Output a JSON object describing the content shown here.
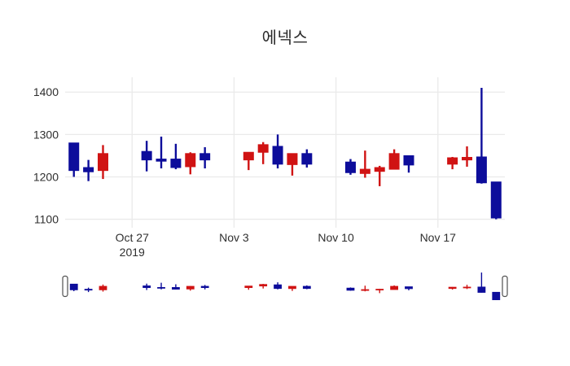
{
  "chart_data": {
    "type": "candlestick",
    "title": "에넥스",
    "x": [
      "2019-10-23",
      "2019-10-24",
      "2019-10-25",
      "2019-10-28",
      "2019-10-29",
      "2019-10-30",
      "2019-10-31",
      "2019-11-01",
      "2019-11-04",
      "2019-11-05",
      "2019-11-06",
      "2019-11-07",
      "2019-11-08",
      "2019-11-11",
      "2019-11-12",
      "2019-11-13",
      "2019-11-14",
      "2019-11-15",
      "2019-11-18",
      "2019-11-19",
      "2019-11-20",
      "2019-11-21"
    ],
    "open": [
      1280,
      1222,
      1215,
      1260,
      1242,
      1242,
      1224,
      1255,
      1240,
      1258,
      1272,
      1229,
      1255,
      1235,
      1208,
      1213,
      1218,
      1250,
      1230,
      1240,
      1247,
      1188
    ],
    "high": [
      1280,
      1240,
      1275,
      1285,
      1295,
      1278,
      1258,
      1270,
      1258,
      1282,
      1300,
      1255,
      1265,
      1242,
      1262,
      1226,
      1265,
      1250,
      1247,
      1272,
      1410,
      1188
    ],
    "low": [
      1200,
      1190,
      1195,
      1213,
      1220,
      1218,
      1206,
      1220,
      1216,
      1230,
      1220,
      1203,
      1222,
      1205,
      1198,
      1178,
      1218,
      1210,
      1218,
      1224,
      1184,
      1100
    ],
    "close": [
      1215,
      1212,
      1255,
      1240,
      1237,
      1222,
      1255,
      1240,
      1258,
      1276,
      1230,
      1255,
      1230,
      1210,
      1218,
      1222,
      1255,
      1228,
      1245,
      1246,
      1186,
      1103
    ],
    "increasing_color": "#d01313",
    "decreasing_color": "#0d0d9b",
    "grid_color": "#eaeaea",
    "text_color": "#2f2f2f",
    "background_color": "#ffffff",
    "handle_border_color": "#505050",
    "yticks": [
      1100,
      1200,
      1300,
      1400
    ],
    "xticks": [
      {
        "date": "2019-10-27",
        "label": "Oct 27",
        "sublabel": "2019"
      },
      {
        "date": "2019-11-03",
        "label": "Nov 3",
        "sublabel": ""
      },
      {
        "date": "2019-11-10",
        "label": "Nov 10",
        "sublabel": ""
      },
      {
        "date": "2019-11-17",
        "label": "Nov 17",
        "sublabel": ""
      }
    ],
    "ylim": [
      1080,
      1435
    ],
    "grid": true,
    "legend": false,
    "rangeslider": true
  }
}
